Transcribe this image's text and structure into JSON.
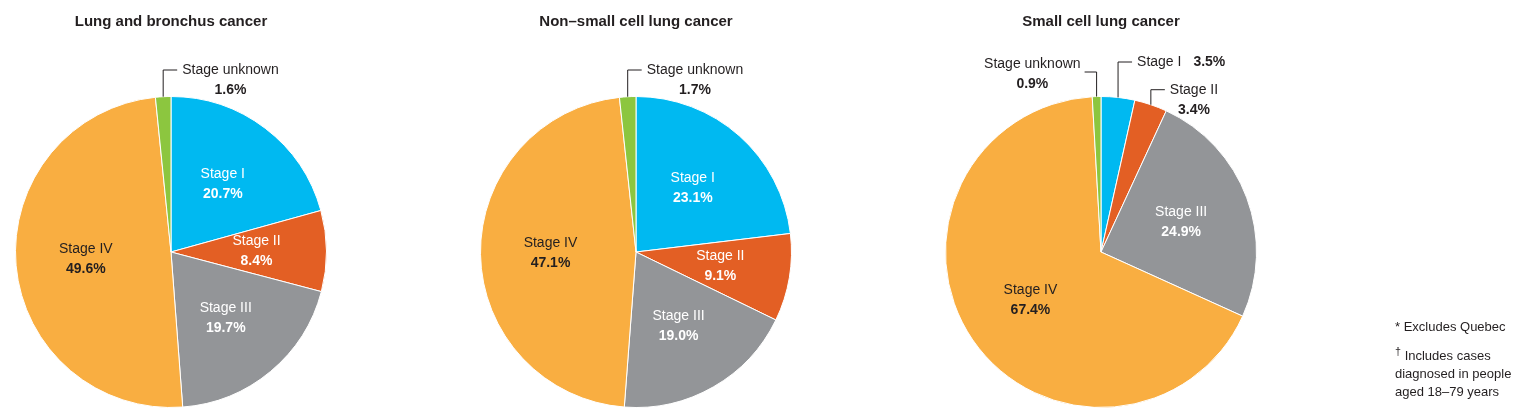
{
  "chart_data": [
    {
      "type": "pie",
      "title": "Lung and bronchus cancer",
      "categories": [
        "Stage I",
        "Stage II",
        "Stage III",
        "Stage IV",
        "Stage unknown"
      ],
      "values": [
        20.7,
        8.4,
        19.7,
        49.6,
        1.6
      ],
      "value_labels": [
        "20.7%",
        "8.4%",
        "19.7%",
        "49.6%",
        "1.6%"
      ],
      "colors": [
        "#00b9f1",
        "#e35f24",
        "#939598",
        "#f9ae41",
        "#8cc63f"
      ]
    },
    {
      "type": "pie",
      "title": "Non–small cell lung cancer",
      "categories": [
        "Stage I",
        "Stage II",
        "Stage III",
        "Stage IV",
        "Stage unknown"
      ],
      "values": [
        23.1,
        9.1,
        19.0,
        47.1,
        1.7
      ],
      "value_labels": [
        "23.1%",
        "9.1%",
        "19.0%",
        "47.1%",
        "1.7%"
      ],
      "colors": [
        "#00b9f1",
        "#e35f24",
        "#939598",
        "#f9ae41",
        "#8cc63f"
      ]
    },
    {
      "type": "pie",
      "title": "Small cell lung cancer",
      "categories": [
        "Stage I",
        "Stage II",
        "Stage III",
        "Stage IV",
        "Stage unknown"
      ],
      "values": [
        3.5,
        3.4,
        24.9,
        67.4,
        0.9
      ],
      "value_labels": [
        "3.5%",
        "3.4%",
        "24.9%",
        "67.4%",
        "0.9%"
      ],
      "colors": [
        "#00b9f1",
        "#e35f24",
        "#939598",
        "#f9ae41",
        "#8cc63f"
      ],
      "annotations": [
        "* Excludes Quebec",
        "$^{†}$ Includes cases diagnosed in people aged 18–79 years"
      ]
    }
  ]
}
